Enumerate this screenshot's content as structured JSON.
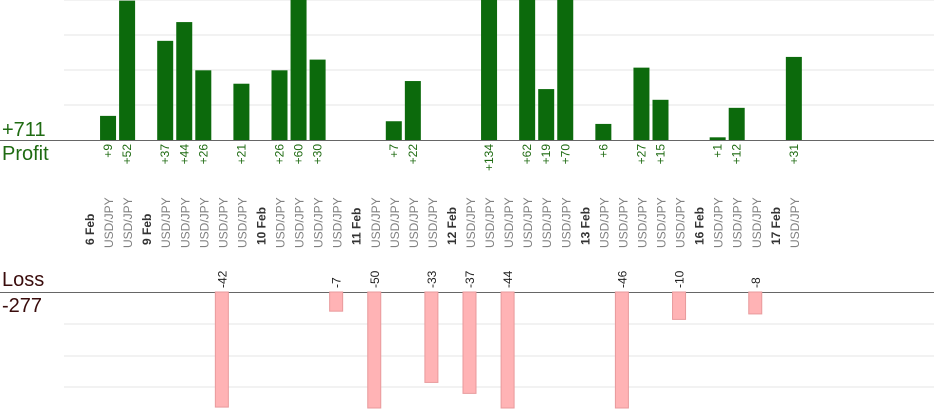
{
  "summary": {
    "total_profit": "+711",
    "profit_label": "Profit",
    "loss_label": "Loss",
    "total_loss": "-277"
  },
  "colors": {
    "profit_bar": "#0c6a0c",
    "profit_text": "#1f6b12",
    "loss_bar": "#ffb3b5",
    "loss_text": "#3a0c0c",
    "grid": "#e6e6e6",
    "axis": "#666666",
    "pair_text": "#808080"
  },
  "chart_data": {
    "type": "bar",
    "axis_scale_note": "profit bars clipped at top of viewport",
    "dates": [
      {
        "label": "6 Feb",
        "slot": 0
      },
      {
        "label": "9 Feb",
        "slot": 3
      },
      {
        "label": "10 Feb",
        "slot": 9
      },
      {
        "label": "11 Feb",
        "slot": 14
      },
      {
        "label": "12 Feb",
        "slot": 19
      },
      {
        "label": "13 Feb",
        "slot": 26
      },
      {
        "label": "16 Feb",
        "slot": 32
      },
      {
        "label": "17 Feb",
        "slot": 36
      }
    ],
    "trades": [
      {
        "pair": "USD/JPY",
        "profit": 9
      },
      {
        "pair": "USD/JPY",
        "profit": 52
      },
      {
        "pair": "USD/JPY",
        "profit": 37
      },
      {
        "pair": "USD/JPY",
        "profit": 44
      },
      {
        "pair": "USD/JPY",
        "profit": 26
      },
      {
        "pair": "USD/JPY",
        "loss": -42
      },
      {
        "pair": "USD/JPY",
        "profit": 21
      },
      {
        "pair": "USD/JPY",
        "profit": 26
      },
      {
        "pair": "USD/JPY",
        "profit": 60
      },
      {
        "pair": "USD/JPY",
        "profit": 30
      },
      {
        "pair": "USD/JPY",
        "loss": -7
      },
      {
        "pair": "USD/JPY",
        "loss": -50
      },
      {
        "pair": "USD/JPY",
        "profit": 7
      },
      {
        "pair": "USD/JPY",
        "profit": 22
      },
      {
        "pair": "USD/JPY",
        "loss": -33
      },
      {
        "pair": "USD/JPY",
        "loss": -37
      },
      {
        "pair": "USD/JPY",
        "profit": 134
      },
      {
        "pair": "USD/JPY",
        "loss": -44
      },
      {
        "pair": "USD/JPY",
        "profit": 62
      },
      {
        "pair": "USD/JPY",
        "profit": 19
      },
      {
        "pair": "USD/JPY",
        "profit": 70
      },
      {
        "pair": "USD/JPY",
        "profit": 6
      },
      {
        "pair": "USD/JPY",
        "loss": -46
      },
      {
        "pair": "USD/JPY",
        "profit": 27
      },
      {
        "pair": "USD/JPY",
        "profit": 15
      },
      {
        "pair": "USD/JPY",
        "loss": -10
      },
      {
        "pair": "USD/JPY",
        "profit": 1
      },
      {
        "pair": "USD/JPY",
        "profit": 12
      },
      {
        "pair": "USD/JPY",
        "loss": -8
      },
      {
        "pair": "USD/JPY",
        "profit": 31
      }
    ]
  }
}
